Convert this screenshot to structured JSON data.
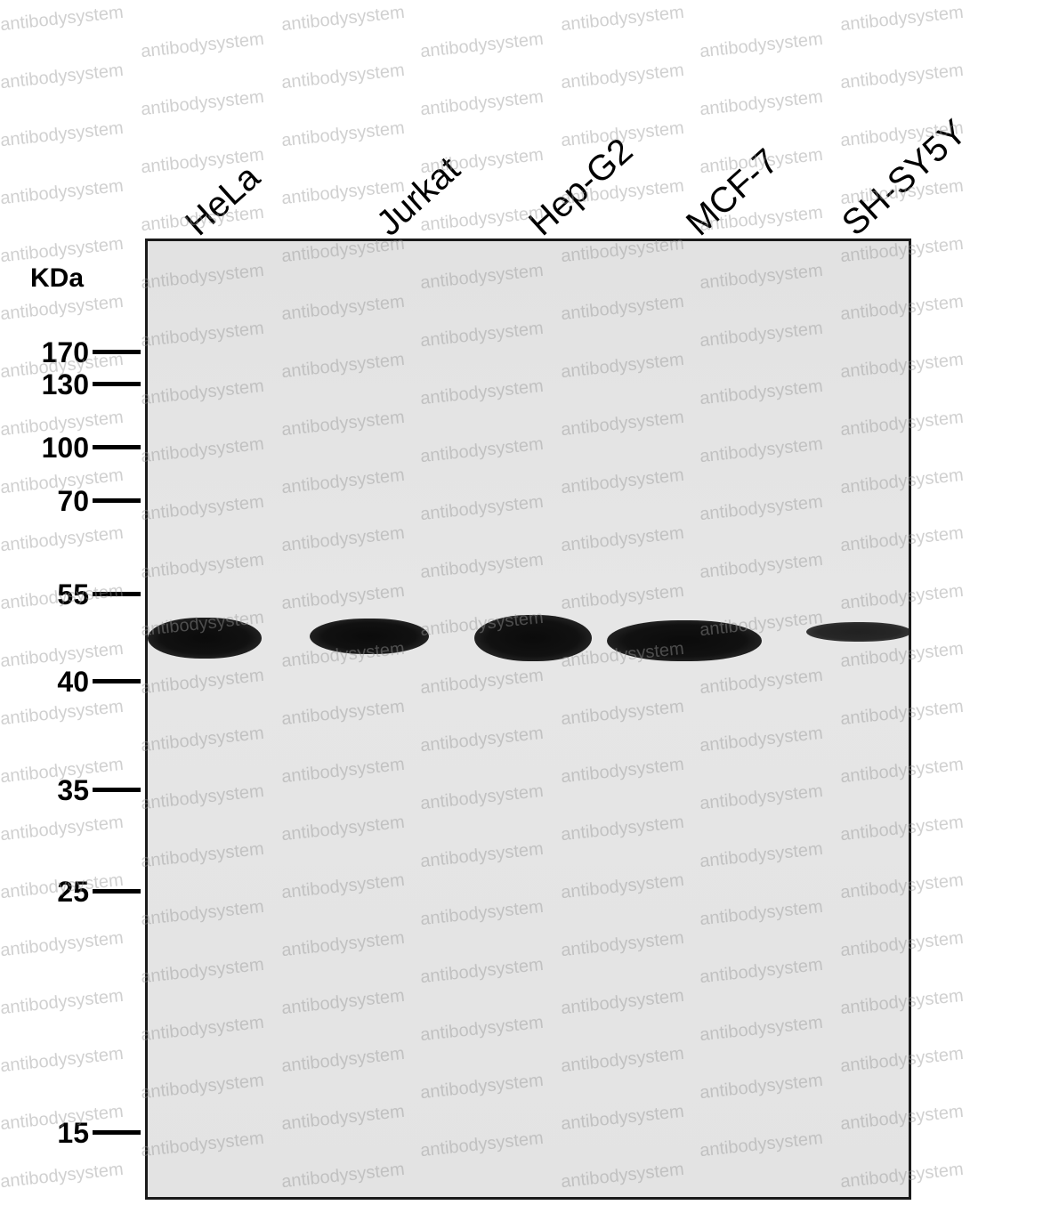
{
  "unit": "KDa",
  "lanes": [
    "HeLa",
    "Jurkat",
    "Hep-G2",
    "MCF-7",
    "SH-SY5Y"
  ],
  "markers": [
    "170",
    "130",
    "100",
    "70",
    "55",
    "40",
    "35",
    "25",
    "15"
  ],
  "watermark": "antibodysystem",
  "bands": [
    {
      "lane": "HeLa",
      "relative_intensity": 0.95
    },
    {
      "lane": "Jurkat",
      "relative_intensity": 0.9
    },
    {
      "lane": "Hep-G2",
      "relative_intensity": 1.0
    },
    {
      "lane": "MCF-7",
      "relative_intensity": 0.95
    },
    {
      "lane": "SH-SY5Y",
      "relative_intensity": 0.45
    }
  ],
  "colors": {
    "membrane": "#e4e4e4",
    "band": "#0b0b0b",
    "frame": "#1a1a1a",
    "watermark": "#969696"
  }
}
